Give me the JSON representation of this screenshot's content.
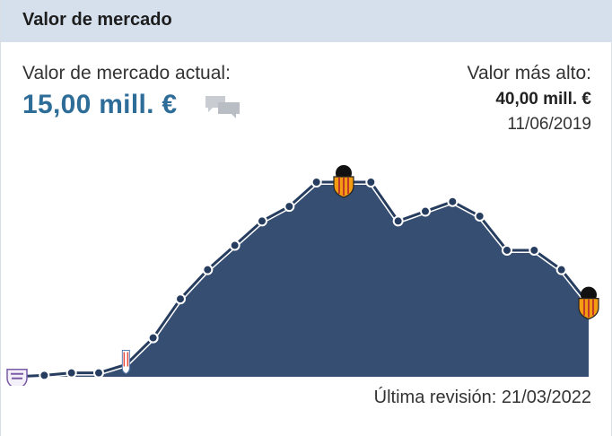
{
  "header": {
    "title": "Valor de mercado"
  },
  "current": {
    "label": "Valor de mercado actual:",
    "value": "15,00 mill. €",
    "comment_icon": "speech-bubbles-icon"
  },
  "highest": {
    "label": "Valor más alto:",
    "value": "40,00 mill. €",
    "date": "11/06/2019"
  },
  "footer": {
    "last_revision": "Última revisión: 21/03/2022"
  },
  "colors": {
    "header_bg": "#d5e0ec",
    "accent": "#2f6d99",
    "area_fill": "#354e72",
    "line": "#263d5f"
  },
  "chart_data": {
    "type": "area",
    "values": [
      0.05,
      0.3,
      0.8,
      0.8,
      2.5,
      8,
      16,
      22,
      27,
      32,
      35,
      40,
      40,
      40,
      32,
      34,
      36,
      33,
      26,
      26,
      22,
      15
    ],
    "clubs": [
      {
        "name": "club-crest-start",
        "index": 0,
        "icon": "club-crest-purple-icon"
      },
      {
        "name": "club-crest-transfer",
        "index": 4,
        "icon": "club-crest-striped-icon"
      },
      {
        "name": "club-crest-peak",
        "index": 12,
        "icon": "valencia-crest-icon"
      },
      {
        "name": "club-crest-current",
        "index": 21,
        "icon": "valencia-crest-icon"
      }
    ]
  }
}
